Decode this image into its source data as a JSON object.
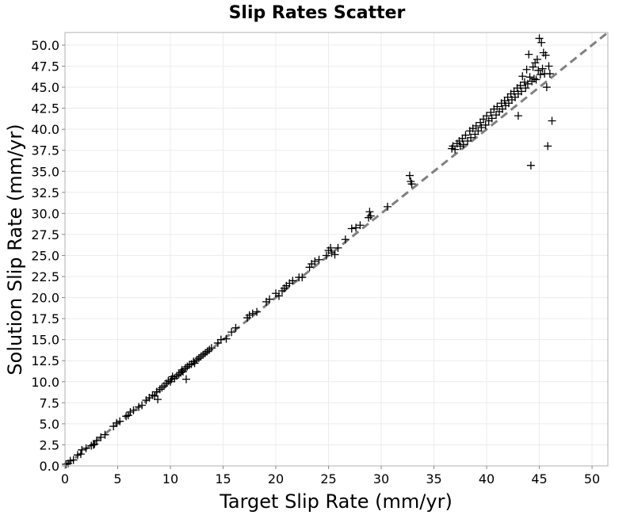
{
  "chart_data": {
    "type": "scatter",
    "title": "Slip Rates Scatter",
    "xlabel": "Target Slip Rate (mm/yr)",
    "ylabel": "Solution Slip Rate (mm/yr)",
    "xlim": [
      0,
      51.5
    ],
    "ylim": [
      0,
      51.5
    ],
    "x_ticks": [
      "0",
      "5",
      "10",
      "15",
      "20",
      "25",
      "30",
      "35",
      "40",
      "45",
      "50"
    ],
    "y_ticks": [
      "0.0",
      "2.5",
      "5.0",
      "7.5",
      "10.0",
      "12.5",
      "15.0",
      "17.5",
      "20.0",
      "22.5",
      "25.0",
      "27.5",
      "30.0",
      "32.5",
      "35.0",
      "37.5",
      "40.0",
      "42.5",
      "45.0",
      "47.5",
      "50.0"
    ],
    "grid": true,
    "marker": "plus",
    "marker_color": "#000000",
    "reference_line": {
      "style": "dashed",
      "color": "#808080",
      "from": [
        0,
        0
      ],
      "to": [
        51.5,
        51.5
      ]
    },
    "points": [
      [
        0.1,
        0.2
      ],
      [
        0.3,
        0.3
      ],
      [
        0.5,
        0.6
      ],
      [
        0.8,
        0.7
      ],
      [
        1.2,
        1.3
      ],
      [
        1.5,
        1.4
      ],
      [
        1.6,
        1.9
      ],
      [
        2.0,
        2.1
      ],
      [
        2.5,
        2.4
      ],
      [
        2.7,
        2.5
      ],
      [
        2.8,
        2.6
      ],
      [
        3.0,
        3.0
      ],
      [
        3.4,
        3.4
      ],
      [
        3.8,
        3.7
      ],
      [
        4.6,
        4.7
      ],
      [
        4.9,
        5.1
      ],
      [
        5.2,
        5.3
      ],
      [
        5.8,
        5.9
      ],
      [
        6.0,
        6.0
      ],
      [
        6.2,
        6.4
      ],
      [
        6.5,
        6.6
      ],
      [
        7.0,
        7.0
      ],
      [
        7.3,
        7.2
      ],
      [
        7.7,
        7.8
      ],
      [
        8.0,
        8.1
      ],
      [
        8.3,
        8.4
      ],
      [
        8.5,
        8.3
      ],
      [
        8.7,
        8.8
      ],
      [
        8.8,
        7.9
      ],
      [
        9.0,
        9.1
      ],
      [
        9.2,
        9.3
      ],
      [
        9.4,
        9.5
      ],
      [
        9.6,
        9.8
      ],
      [
        9.8,
        10.1
      ],
      [
        10.0,
        10.0
      ],
      [
        10.1,
        10.3
      ],
      [
        10.2,
        10.6
      ],
      [
        10.4,
        10.4
      ],
      [
        10.6,
        10.7
      ],
      [
        10.8,
        10.9
      ],
      [
        11.0,
        11.1
      ],
      [
        11.1,
        11.4
      ],
      [
        11.2,
        11.2
      ],
      [
        11.4,
        11.6
      ],
      [
        11.5,
        10.3
      ],
      [
        11.6,
        11.8
      ],
      [
        11.8,
        12.0
      ],
      [
        12.0,
        12.1
      ],
      [
        12.2,
        12.4
      ],
      [
        12.3,
        12.2
      ],
      [
        12.5,
        12.6
      ],
      [
        12.7,
        12.8
      ],
      [
        12.9,
        13.0
      ],
      [
        13.1,
        13.2
      ],
      [
        13.3,
        13.4
      ],
      [
        13.5,
        13.6
      ],
      [
        13.7,
        13.8
      ],
      [
        13.9,
        14.0
      ],
      [
        14.5,
        14.6
      ],
      [
        14.8,
        15.0
      ],
      [
        15.3,
        15.1
      ],
      [
        15.8,
        15.9
      ],
      [
        16.2,
        16.4
      ],
      [
        17.3,
        17.6
      ],
      [
        17.5,
        17.9
      ],
      [
        17.8,
        18.1
      ],
      [
        18.2,
        18.3
      ],
      [
        19.1,
        19.5
      ],
      [
        19.4,
        19.8
      ],
      [
        20.0,
        20.5
      ],
      [
        20.3,
        20.2
      ],
      [
        20.6,
        20.8
      ],
      [
        20.8,
        21.1
      ],
      [
        21.0,
        21.4
      ],
      [
        21.3,
        21.7
      ],
      [
        21.6,
        22.0
      ],
      [
        22.2,
        22.4
      ],
      [
        22.5,
        22.4
      ],
      [
        23.2,
        23.6
      ],
      [
        23.4,
        24.0
      ],
      [
        23.7,
        24.3
      ],
      [
        24.1,
        24.5
      ],
      [
        24.8,
        25.0
      ],
      [
        25.0,
        25.6
      ],
      [
        25.2,
        25.9
      ],
      [
        25.3,
        25.3
      ],
      [
        25.6,
        25.1
      ],
      [
        25.9,
        25.9
      ],
      [
        26.6,
        26.9
      ],
      [
        27.2,
        28.2
      ],
      [
        27.6,
        28.3
      ],
      [
        28.0,
        28.6
      ],
      [
        28.8,
        29.5
      ],
      [
        28.9,
        30.2
      ],
      [
        29.0,
        29.7
      ],
      [
        30.6,
        30.8
      ],
      [
        32.7,
        34.5
      ],
      [
        32.8,
        33.8
      ],
      [
        32.9,
        33.5
      ],
      [
        36.7,
        37.7
      ],
      [
        36.8,
        38.0
      ],
      [
        37.0,
        37.6
      ],
      [
        37.2,
        38.3
      ],
      [
        37.4,
        38.6
      ],
      [
        37.5,
        38.0
      ],
      [
        37.7,
        38.9
      ],
      [
        37.8,
        38.2
      ],
      [
        38.0,
        39.3
      ],
      [
        38.2,
        38.6
      ],
      [
        38.4,
        39.8
      ],
      [
        38.5,
        39.0
      ],
      [
        38.7,
        40.1
      ],
      [
        38.9,
        39.4
      ],
      [
        39.0,
        40.4
      ],
      [
        39.2,
        39.8
      ],
      [
        39.4,
        40.8
      ],
      [
        39.5,
        40.2
      ],
      [
        39.7,
        41.2
      ],
      [
        39.9,
        40.5
      ],
      [
        40.0,
        41.6
      ],
      [
        40.2,
        41.0
      ],
      [
        40.4,
        42.0
      ],
      [
        40.5,
        41.3
      ],
      [
        40.7,
        42.4
      ],
      [
        40.9,
        41.7
      ],
      [
        41.0,
        42.7
      ],
      [
        41.2,
        42.1
      ],
      [
        41.4,
        43.1
      ],
      [
        41.5,
        42.4
      ],
      [
        41.7,
        43.4
      ],
      [
        41.8,
        42.8
      ],
      [
        42.0,
        43.8
      ],
      [
        42.1,
        43.1
      ],
      [
        42.3,
        44.2
      ],
      [
        42.4,
        43.5
      ],
      [
        42.6,
        44.5
      ],
      [
        42.7,
        43.8
      ],
      [
        42.9,
        44.9
      ],
      [
        43.0,
        41.6
      ],
      [
        43.0,
        44.2
      ],
      [
        43.2,
        45.2
      ],
      [
        43.3,
        44.5
      ],
      [
        43.4,
        46.3
      ],
      [
        43.6,
        45.6
      ],
      [
        43.7,
        44.9
      ],
      [
        43.8,
        47.1
      ],
      [
        43.9,
        45.4
      ],
      [
        44.0,
        48.9
      ],
      [
        44.1,
        46.2
      ],
      [
        44.2,
        35.7
      ],
      [
        44.3,
        45.7
      ],
      [
        44.4,
        47.4
      ],
      [
        44.5,
        46.0
      ],
      [
        44.6,
        47.9
      ],
      [
        44.7,
        45.9
      ],
      [
        44.8,
        48.3
      ],
      [
        44.9,
        47.0
      ],
      [
        45.0,
        50.8
      ],
      [
        45.1,
        46.5
      ],
      [
        45.2,
        50.3
      ],
      [
        45.3,
        47.2
      ],
      [
        45.4,
        49.1
      ],
      [
        45.5,
        46.6
      ],
      [
        45.6,
        48.8
      ],
      [
        45.7,
        45.0
      ],
      [
        45.8,
        38.0
      ],
      [
        45.9,
        47.5
      ],
      [
        46.0,
        46.6
      ],
      [
        46.2,
        41.0
      ]
    ]
  }
}
